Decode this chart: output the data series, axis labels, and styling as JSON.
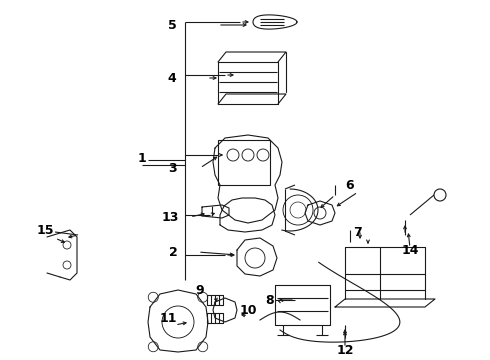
{
  "bg_color": "#ffffff",
  "fig_width": 4.9,
  "fig_height": 3.6,
  "dpi": 100,
  "image_b64": ""
}
